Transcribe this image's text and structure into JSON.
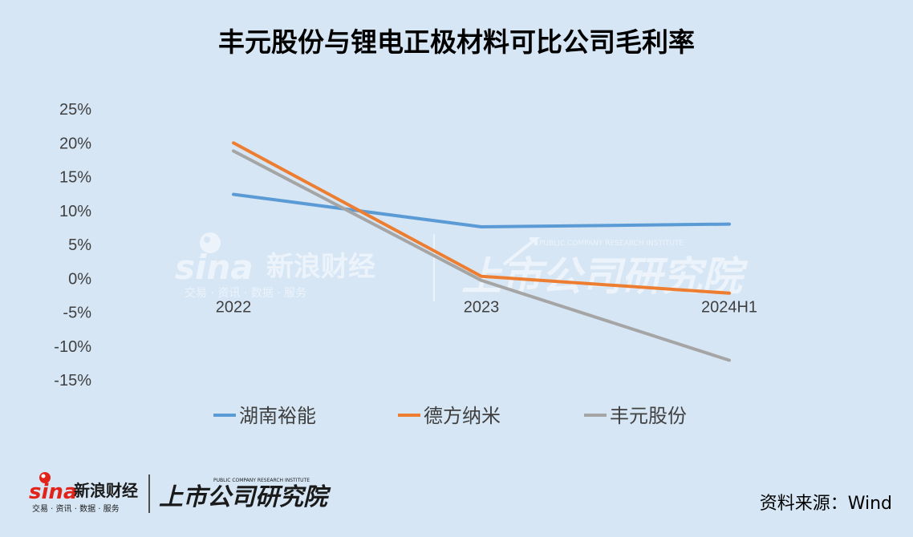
{
  "title": "丰元股份与锂电正极材料可比公司毛利率",
  "source": "资料来源：Wind",
  "watermark": {
    "sina_logo": "sina",
    "sina_name": "新浪财经",
    "sina_tagline": "交易 · 资讯 · 数据 · 服务",
    "institute_name": "上市公司研究院",
    "institute_en": "PUBLIC COMPANY RESEARCH INSTITUTE"
  },
  "chart_data": {
    "type": "line",
    "categories": [
      "2022",
      "2023",
      "2024H1"
    ],
    "y_ticks": [
      "25%",
      "20%",
      "15%",
      "10%",
      "5%",
      "0%",
      "-5%",
      "-10%",
      "-15%"
    ],
    "ylim": [
      -15,
      25
    ],
    "y_unit": "%",
    "grid": false,
    "legend_position": "bottom",
    "series": [
      {
        "name": "湖南裕能",
        "values": [
          12.4,
          7.6,
          8.0
        ],
        "color": "#5b9bd5"
      },
      {
        "name": "德方纳米",
        "values": [
          20.0,
          0.3,
          -2.2
        ],
        "color": "#ed7d31"
      },
      {
        "name": "丰元股份",
        "values": [
          18.8,
          -0.3,
          -12.1
        ],
        "color": "#a5a5a5"
      }
    ]
  }
}
